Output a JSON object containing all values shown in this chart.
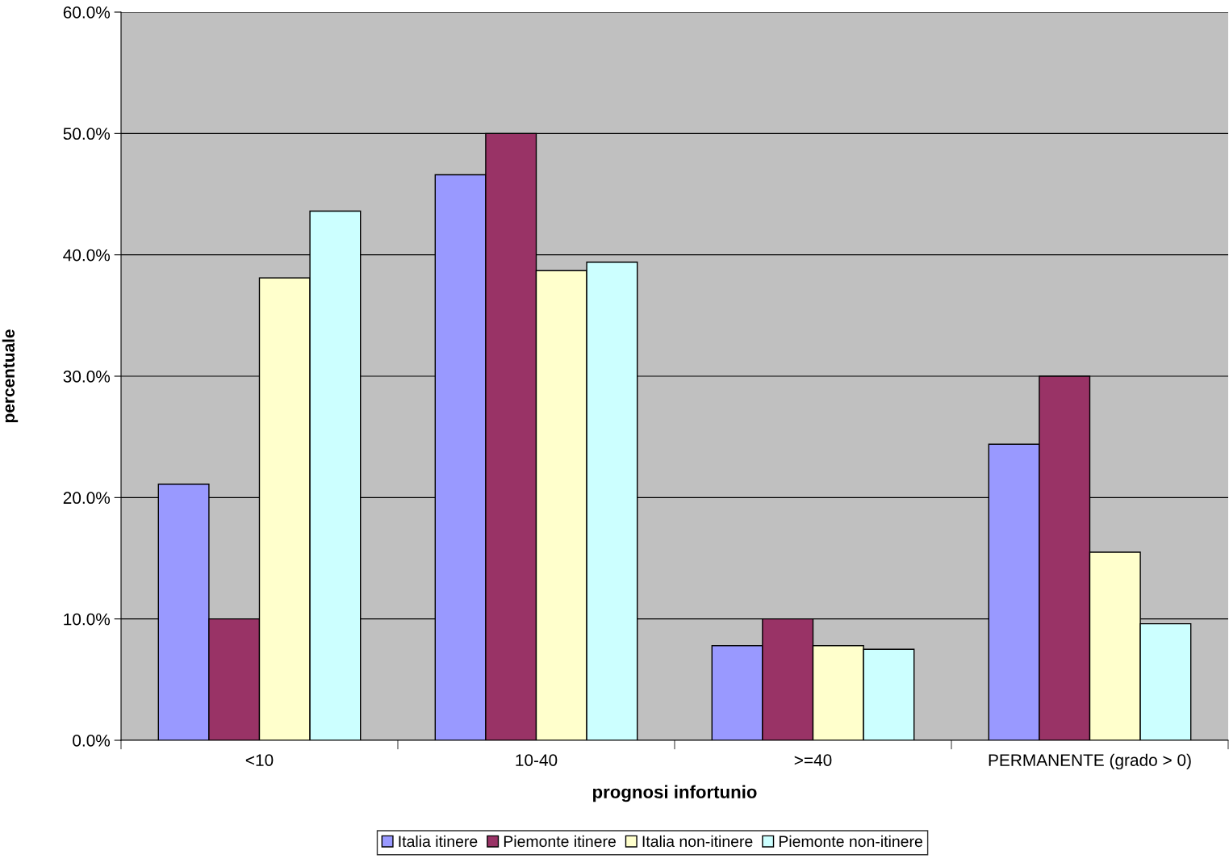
{
  "chart_data": {
    "type": "bar",
    "xlabel": "prognosi infortunio",
    "ylabel": "percentuale",
    "categories": [
      "<10",
      "10-40",
      ">=40",
      "PERMANENTE (grado > 0)"
    ],
    "series": [
      {
        "name": "Italia itinere",
        "color": "#9999ff",
        "values": [
          21.1,
          46.6,
          7.8,
          24.4
        ]
      },
      {
        "name": "Piemonte itinere",
        "color": "#993366",
        "values": [
          10.0,
          50.0,
          10.0,
          30.0
        ]
      },
      {
        "name": "Italia non-itinere",
        "color": "#ffffcc",
        "values": [
          38.1,
          38.7,
          7.8,
          15.5
        ]
      },
      {
        "name": "Piemonte non-itinere",
        "color": "#ccffff",
        "values": [
          43.6,
          39.4,
          7.5,
          9.6
        ]
      }
    ],
    "ylim": [
      0,
      60
    ],
    "yticks": [
      {
        "value": 0,
        "label": "0.0%"
      },
      {
        "value": 10,
        "label": "10.0%"
      },
      {
        "value": 20,
        "label": "20.0%"
      },
      {
        "value": 30,
        "label": "30.0%"
      },
      {
        "value": 40,
        "label": "40.0%"
      },
      {
        "value": 50,
        "label": "50.0%"
      },
      {
        "value": 60,
        "label": "60.0%"
      }
    ],
    "grid": "y",
    "legend": "bottom"
  }
}
